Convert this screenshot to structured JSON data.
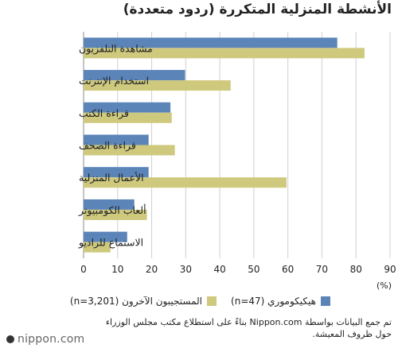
{
  "chart_data": {
    "type": "bar",
    "orientation": "horizontal",
    "title": "الأنشطة المنزلية المتكررة (ردود متعددة)",
    "unit_label": "(%)",
    "categories": [
      "مشاهدة التلفزيون",
      "استخدام الإنترنت",
      "قراءة الكتب",
      "قراءة الصحف",
      "الأعمال المنزلية",
      "ألعاب الكومبيوتر",
      "الاستماع للراديو"
    ],
    "series": [
      {
        "name": "هيكيكوموري (n=47)",
        "color": "#5b84b8",
        "values": [
          74.5,
          29.8,
          25.5,
          19.1,
          19.1,
          14.9,
          12.8
        ]
      },
      {
        "name": "المستجيبون الآخرون (n=3,201)",
        "color": "#cfc97e",
        "values": [
          82.5,
          43.2,
          25.9,
          26.8,
          59.6,
          18.6,
          7.9
        ]
      }
    ],
    "xlim": [
      0,
      90
    ],
    "xticks": [
      0,
      10,
      20,
      30,
      40,
      50,
      60,
      70,
      80,
      90
    ],
    "grid": true,
    "legend_position": "bottom"
  },
  "source_note": "تم جمع البيانات بواسطة Nippon.com بناءً على استطلاع مكتب مجلس الوزراء حول ظروف المعيشة.",
  "logo_text": "nippon.com"
}
